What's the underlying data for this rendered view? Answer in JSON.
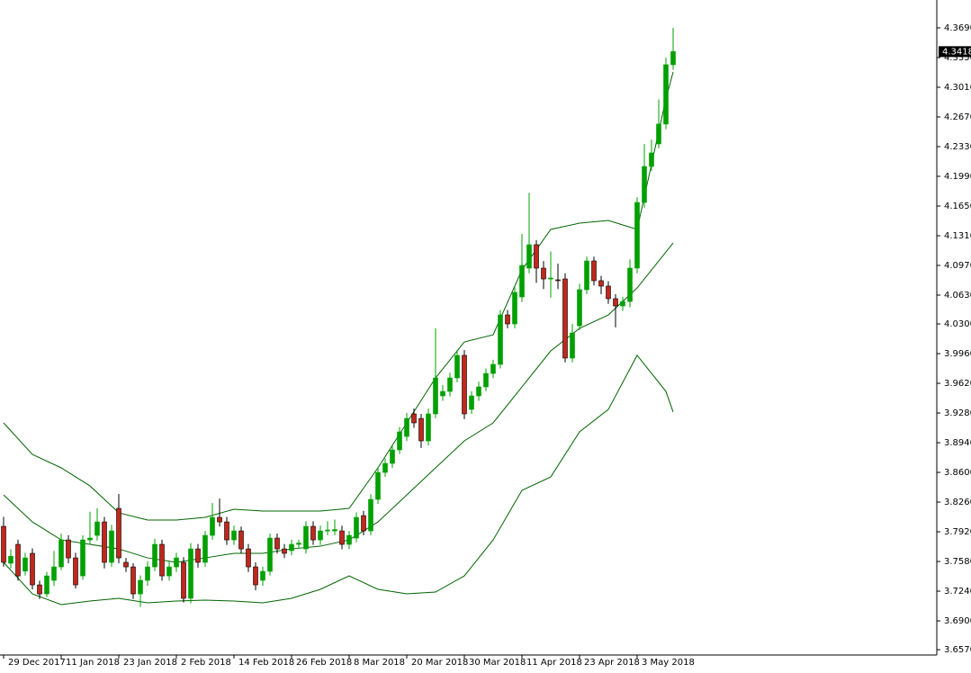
{
  "chart_data": {
    "type": "candlestick",
    "categories": [
      "29 Dec 2017",
      null,
      null,
      null,
      null,
      null,
      null,
      null,
      "11 Jan 2018",
      null,
      null,
      null,
      null,
      null,
      null,
      null,
      "23 Jan 2018",
      null,
      null,
      null,
      null,
      null,
      null,
      null,
      "2 Feb 2018",
      null,
      null,
      null,
      null,
      null,
      null,
      null,
      "14 Feb 2018",
      null,
      null,
      null,
      null,
      null,
      null,
      null,
      "26 Feb 2018",
      null,
      null,
      null,
      null,
      null,
      null,
      null,
      "8 Mar 2018",
      null,
      null,
      null,
      null,
      null,
      null,
      null,
      "20 Mar 2018",
      null,
      null,
      null,
      null,
      null,
      null,
      null,
      "30 Mar 2018",
      null,
      null,
      null,
      null,
      null,
      null,
      null,
      "11 Apr 2018",
      null,
      null,
      null,
      null,
      null,
      null,
      null,
      "23 Apr 2018",
      null,
      null,
      null,
      null,
      null,
      null,
      null,
      "3 May 2018",
      null,
      null,
      null,
      null,
      null
    ],
    "open": [
      3.7982,
      3.756,
      3.7776,
      3.747,
      3.7673,
      3.7312,
      3.7209,
      3.7364,
      3.7518,
      3.7827,
      3.7621,
      3.7415,
      3.7827,
      3.7879,
      3.8033,
      3.757,
      3.8188,
      3.757,
      3.7518,
      3.7209,
      3.7364,
      3.7518,
      3.7776,
      3.7415,
      3.7518,
      3.757,
      3.7158,
      3.7724,
      3.757,
      3.7879,
      3.8085,
      3.8033,
      3.7827,
      3.793,
      3.7724,
      3.7518,
      3.7364,
      3.7467,
      3.7848,
      3.7724,
      3.7704,
      3.7776,
      3.7724,
      3.7982,
      3.7827,
      3.793,
      3.793,
      3.793,
      3.7776,
      3.7848,
      3.8105,
      3.793,
      3.8291,
      3.86,
      3.8703,
      3.8858,
      3.9012,
      3.927,
      3.9218,
      3.8961,
      3.927,
      3.9476,
      3.9527,
      3.9682,
      3.994,
      3.9321,
      3.9476,
      3.9579,
      3.9733,
      3.9837,
      4.0403,
      4.03,
      4.0609,
      4.0939,
      4.1207,
      4.0939,
      4.0815,
      4.0805,
      4.0815,
      3.9909,
      4.0279,
      4.0692,
      4.1021,
      4.0795,
      4.0733,
      4.0589,
      4.0506,
      4.0557,
      4.0939,
      4.1691,
      4.2103,
      4.2361,
      4.2588,
      4.3268
    ],
    "high": [
      3.809,
      3.772,
      3.783,
      3.768,
      3.773,
      3.736,
      3.746,
      3.77,
      3.79,
      3.788,
      3.768,
      3.788,
      3.815,
      3.8188,
      3.809,
      3.8,
      3.8353,
      3.762,
      3.756,
      3.742,
      3.758,
      3.784,
      3.783,
      3.758,
      3.768,
      3.763,
      3.779,
      3.778,
      3.793,
      3.825,
      3.83,
      3.809,
      3.799,
      3.798,
      3.778,
      3.757,
      3.752,
      3.79,
      3.79,
      3.778,
      3.783,
      3.783,
      3.804,
      3.804,
      3.799,
      3.804,
      3.806,
      3.799,
      3.793,
      3.814,
      3.816,
      3.835,
      3.866,
      3.876,
      3.891,
      3.912,
      3.928,
      3.933,
      3.927,
      3.933,
      4.0249,
      3.96,
      3.974,
      4.0,
      4.0,
      3.953,
      3.964,
      3.979,
      3.989,
      4.046,
      4.046,
      4.072,
      4.133,
      4.18,
      4.126,
      4.102,
      4.113,
      4.099,
      4.088,
      4.03,
      4.076,
      4.107,
      4.107,
      4.085,
      4.079,
      4.064,
      4.061,
      4.104,
      4.175,
      4.236,
      4.241,
      4.287,
      4.335,
      4.369
    ],
    "low": [
      3.752,
      3.75,
      3.736,
      3.742,
      3.726,
      3.715,
      3.717,
      3.73,
      3.748,
      3.756,
      3.727,
      3.737,
      3.778,
      3.782,
      3.75,
      3.752,
      3.756,
      3.746,
      3.715,
      3.706,
      3.73,
      3.747,
      3.736,
      3.736,
      3.746,
      3.711,
      3.71,
      3.751,
      3.752,
      3.783,
      3.798,
      3.777,
      3.777,
      3.767,
      3.746,
      3.725,
      3.73,
      3.742,
      3.767,
      3.762,
      3.765,
      3.773,
      3.767,
      3.777,
      3.777,
      3.788,
      3.788,
      3.772,
      3.772,
      3.78,
      3.788,
      3.788,
      3.824,
      3.855,
      3.865,
      3.881,
      3.896,
      3.911,
      3.888,
      3.891,
      3.922,
      3.942,
      3.947,
      3.963,
      3.921,
      3.927,
      3.942,
      3.953,
      3.968,
      3.979,
      4.025,
      4.025,
      4.055,
      4.088,
      4.077,
      4.07,
      4.06,
      4.07,
      3.986,
      3.986,
      4.023,
      4.064,
      4.074,
      4.064,
      4.053,
      4.026,
      4.045,
      4.049,
      4.088,
      4.163,
      4.205,
      4.231,
      4.253,
      4.321
    ],
    "close": [
      3.757,
      3.764,
      3.7415,
      3.7621,
      3.7312,
      3.7209,
      3.7415,
      3.7518,
      3.7827,
      3.7621,
      3.7312,
      3.7827,
      3.7848,
      3.8033,
      3.757,
      3.793,
      3.7621,
      3.7518,
      3.7209,
      3.7364,
      3.7518,
      3.7776,
      3.7415,
      3.7518,
      3.7621,
      3.7158,
      3.7724,
      3.757,
      3.7879,
      3.8085,
      3.8033,
      3.7827,
      3.793,
      3.7724,
      3.7518,
      3.7312,
      3.7467,
      3.7848,
      3.7724,
      3.7673,
      3.7776,
      3.779,
      3.7982,
      3.7827,
      3.793,
      3.794,
      3.7945,
      3.7776,
      3.7879,
      3.8085,
      3.793,
      3.8291,
      3.86,
      3.8703,
      3.8858,
      3.9064,
      3.9218,
      3.9167,
      3.8961,
      3.927,
      3.9682,
      3.9527,
      3.9682,
      3.994,
      3.927,
      3.9476,
      3.9579,
      3.9733,
      3.9837,
      4.0403,
      4.03,
      4.0661,
      4.097,
      4.1207,
      4.0939,
      4.0815,
      4.0825,
      4.0795,
      3.9909,
      4.0197,
      4.0692,
      4.1021,
      4.0795,
      4.0733,
      4.0589,
      4.0506,
      4.0557,
      4.0939,
      4.1691,
      4.2103,
      4.2258,
      4.2588,
      4.3268,
      4.3418
    ],
    "up_color": "#00a000",
    "down_color": "#c0281c",
    "bands": [
      {
        "color": "#006400",
        "x": [
          0,
          4,
          8,
          12,
          16,
          20,
          24,
          28,
          32,
          36,
          40,
          44,
          48,
          52,
          56,
          60,
          64,
          68,
          72,
          76,
          80,
          84,
          88,
          92,
          93
        ],
        "values": [
          3.9167,
          3.8806,
          3.8652,
          3.8445,
          3.8137,
          3.8054,
          3.8054,
          3.8085,
          3.8178,
          3.8157,
          3.8157,
          3.8157,
          3.8188,
          3.8652,
          3.9167,
          3.9682,
          4.0094,
          4.0176,
          4.0918,
          4.1382,
          4.1454,
          4.1485,
          4.1382,
          4.2876,
          4.3185
        ]
      },
      {
        "color": "#006400",
        "x": [
          0,
          4,
          8,
          12,
          16,
          20,
          24,
          28,
          32,
          36,
          40,
          44,
          48,
          52,
          56,
          60,
          64,
          68,
          72,
          76,
          80,
          84,
          88,
          92,
          93
        ],
        "values": [
          3.8342,
          3.8033,
          3.7827,
          3.7776,
          3.7724,
          3.7621,
          3.757,
          3.7621,
          3.7673,
          3.7673,
          3.7724,
          3.7755,
          3.7827,
          3.8033,
          3.8342,
          3.8652,
          3.8961,
          3.9167,
          3.9579,
          3.9991,
          4.0249,
          4.0403,
          4.0712,
          4.1124,
          4.1227
        ]
      },
      {
        "color": "#006400",
        "x": [
          0,
          4,
          8,
          12,
          16,
          20,
          24,
          28,
          32,
          36,
          40,
          44,
          48,
          52,
          56,
          60,
          64,
          68,
          72,
          76,
          80,
          84,
          88,
          92,
          93
        ],
        "values": [
          3.757,
          3.7209,
          3.7086,
          3.7127,
          3.7158,
          3.7107,
          3.7127,
          3.7137,
          3.7127,
          3.7107,
          3.7158,
          3.7261,
          3.7415,
          3.7261,
          3.7209,
          3.723,
          3.7415,
          3.7827,
          3.8394,
          3.8548,
          3.9064,
          3.9321,
          3.994,
          3.9527,
          3.9291
        ]
      }
    ],
    "ylim": [
      3.6509,
      4.4009
    ],
    "yticks": [
      {
        "value": 4.369,
        "label": "4.3690"
      },
      {
        "value": 4.335,
        "label": "4.3350"
      },
      {
        "value": 4.301,
        "label": "4.3010"
      },
      {
        "value": 4.267,
        "label": "4.2670"
      },
      {
        "value": 4.233,
        "label": "4.2330"
      },
      {
        "value": 4.199,
        "label": "4.1990"
      },
      {
        "value": 4.165,
        "label": "4.1650"
      },
      {
        "value": 4.131,
        "label": "4.1310"
      },
      {
        "value": 4.097,
        "label": "4.0970"
      },
      {
        "value": 4.063,
        "label": "4.0630"
      },
      {
        "value": 4.03,
        "label": "4.0300"
      },
      {
        "value": 3.996,
        "label": "3.9960"
      },
      {
        "value": 3.962,
        "label": "3.9620"
      },
      {
        "value": 3.928,
        "label": "3.9280"
      },
      {
        "value": 3.894,
        "label": "3.8940"
      },
      {
        "value": 3.86,
        "label": "3.8600"
      },
      {
        "value": 3.826,
        "label": "3.8260"
      },
      {
        "value": 3.792,
        "label": "3.7920"
      },
      {
        "value": 3.758,
        "label": "3.7580"
      },
      {
        "value": 3.724,
        "label": "3.7240"
      },
      {
        "value": 3.69,
        "label": "3.6900"
      },
      {
        "value": 3.657,
        "label": "3.6570"
      }
    ]
  }
}
